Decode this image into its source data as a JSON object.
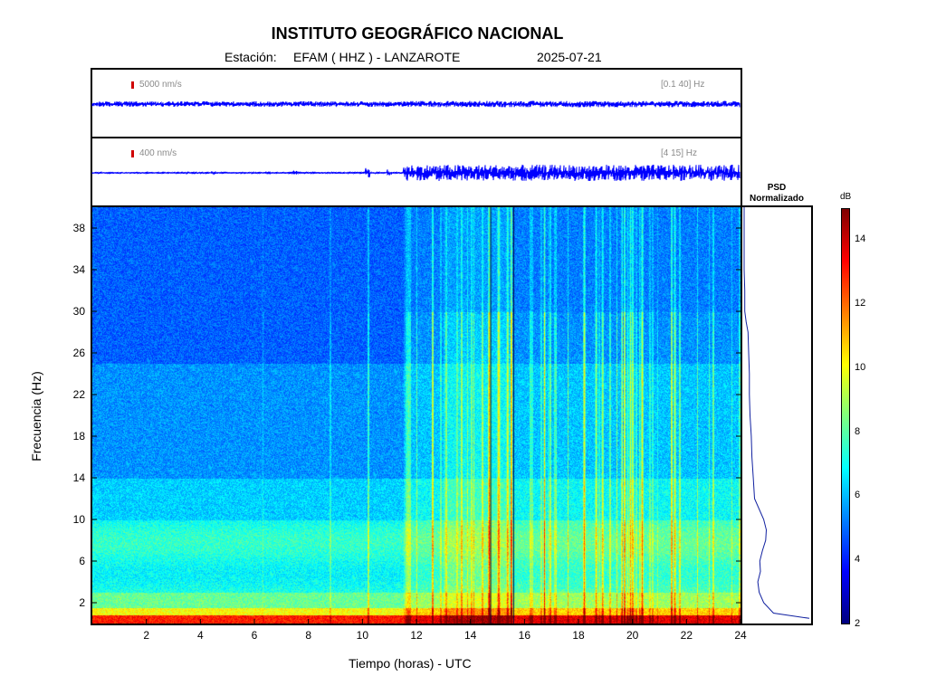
{
  "header": {
    "title": "INSTITUTO GEOGRÁFICO NACIONAL",
    "station_label": "Estación:",
    "station": "EFAM ( HHZ ) - LANZAROTE",
    "date": "2025-07-21"
  },
  "trace1": {
    "amplitude_label": "5000 nm/s",
    "band_label": "[0.1 40] Hz"
  },
  "trace2": {
    "amplitude_label": "400 nm/s",
    "band_label": "[4 15] Hz"
  },
  "psd": {
    "title_line1": "PSD",
    "title_line2": "Normalizado"
  },
  "colorbar": {
    "unit": "dB",
    "ticks": [
      "2",
      "4",
      "6",
      "8",
      "10",
      "12",
      "14"
    ],
    "range": [
      2,
      15
    ],
    "colors": [
      "#00007f",
      "#0000ff",
      "#007fff",
      "#00ffff",
      "#7fff7f",
      "#ffff00",
      "#ff7f00",
      "#ff0000",
      "#7f0000"
    ]
  },
  "chart_data": {
    "type": "heatmap",
    "title": "INSTITUTO GEOGRÁFICO NACIONAL",
    "xlabel": "Tiempo (horas) - UTC",
    "ylabel": "Frecuencia  (Hz)",
    "xlim": [
      0,
      24
    ],
    "ylim": [
      0,
      40
    ],
    "x_ticks": [
      "2",
      "4",
      "6",
      "8",
      "10",
      "12",
      "14",
      "16",
      "18",
      "20",
      "22",
      "24"
    ],
    "y_ticks": [
      "2",
      "6",
      "10",
      "14",
      "18",
      "22",
      "26",
      "30",
      "34",
      "38"
    ],
    "psd_profile": {
      "frequency_hz": [
        0.5,
        1,
        2,
        3,
        4,
        5,
        6,
        7,
        8,
        9,
        10,
        12,
        14,
        16,
        18,
        20,
        22,
        24,
        26,
        28,
        29,
        30,
        32,
        34,
        36,
        38,
        40
      ],
      "normalized": [
        1.0,
        0.45,
        0.3,
        0.23,
        0.21,
        0.25,
        0.24,
        0.28,
        0.33,
        0.34,
        0.3,
        0.16,
        0.14,
        0.12,
        0.11,
        0.09,
        0.08,
        0.08,
        0.07,
        0.06,
        0.03,
        0.01,
        0.01,
        0.0,
        0.0,
        0.0,
        0.0
      ]
    },
    "strong_signal_period_hours": [
      11.5,
      24
    ]
  }
}
